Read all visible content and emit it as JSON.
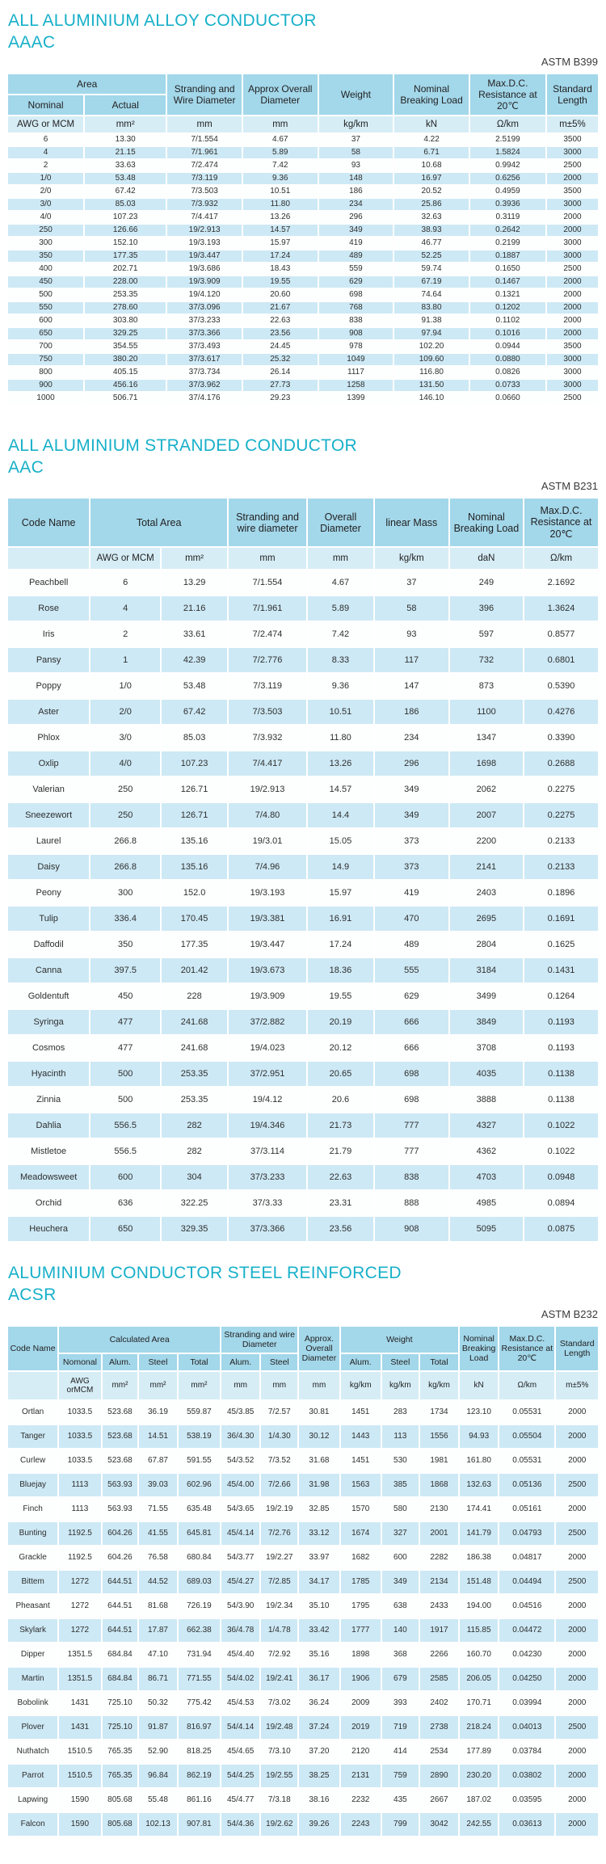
{
  "aaac": {
    "title1": "ALL ALUMINIUM ALLOY CONDUCTOR",
    "title2": "AAAC",
    "standard": "ASTM B399",
    "header": {
      "area": "Area",
      "nominal": "Nominal",
      "actual": "Actual",
      "stranding": "Stranding and Wire Diameter",
      "approx_od": "Approx Overall Diameter",
      "weight": "Weight",
      "breaking_load": "Nominal Breaking Load",
      "resistance": "Max.D.C. Resistance at 20℃",
      "std_length": "Standard Length"
    },
    "units": [
      "AWG or MCM",
      "mm²",
      "mm",
      "mm",
      "kg/km",
      "kN",
      "Ω/km",
      "m±5%"
    ],
    "rows": [
      [
        "6",
        "13.30",
        "7/1.554",
        "4.67",
        "37",
        "4.22",
        "2.5199",
        "3500"
      ],
      [
        "4",
        "21.15",
        "7/1.961",
        "5.89",
        "58",
        "6.71",
        "1.5824",
        "3000"
      ],
      [
        "2",
        "33.63",
        "7/2.474",
        "7.42",
        "93",
        "10.68",
        "0.9942",
        "2500"
      ],
      [
        "1/0",
        "53.48",
        "7/3.119",
        "9.36",
        "148",
        "16.97",
        "0.6256",
        "2000"
      ],
      [
        "2/0",
        "67.42",
        "7/3.503",
        "10.51",
        "186",
        "20.52",
        "0.4959",
        "3500"
      ],
      [
        "3/0",
        "85.03",
        "7/3.932",
        "11.80",
        "234",
        "25.86",
        "0.3936",
        "3000"
      ],
      [
        "4/0",
        "107.23",
        "7/4.417",
        "13.26",
        "296",
        "32.63",
        "0.3119",
        "2000"
      ],
      [
        "250",
        "126.66",
        "19/2.913",
        "14.57",
        "349",
        "38.93",
        "0.2642",
        "2000"
      ],
      [
        "300",
        "152.10",
        "19/3.193",
        "15.97",
        "419",
        "46.77",
        "0.2199",
        "3000"
      ],
      [
        "350",
        "177.35",
        "19/3.447",
        "17.24",
        "489",
        "52.25",
        "0.1887",
        "3000"
      ],
      [
        "400",
        "202.71",
        "19/3.686",
        "18.43",
        "559",
        "59.74",
        "0.1650",
        "2500"
      ],
      [
        "450",
        "228.00",
        "19/3.909",
        "19.55",
        "629",
        "67.19",
        "0.1467",
        "2000"
      ],
      [
        "500",
        "253.35",
        "19/4.120",
        "20.60",
        "698",
        "74.64",
        "0.1321",
        "2000"
      ],
      [
        "550",
        "278.60",
        "37/3.096",
        "21.67",
        "768",
        "83.80",
        "0.1202",
        "2000"
      ],
      [
        "600",
        "303.80",
        "37/3.233",
        "22.63",
        "838",
        "91.38",
        "0.1102",
        "2000"
      ],
      [
        "650",
        "329.25",
        "37/3.366",
        "23.56",
        "908",
        "97.94",
        "0.1016",
        "2000"
      ],
      [
        "700",
        "354.55",
        "37/3.493",
        "24.45",
        "978",
        "102.20",
        "0.0944",
        "3500"
      ],
      [
        "750",
        "380.20",
        "37/3.617",
        "25.32",
        "1049",
        "109.60",
        "0.0880",
        "3000"
      ],
      [
        "800",
        "405.15",
        "37/3.734",
        "26.14",
        "1117",
        "116.80",
        "0.0826",
        "3000"
      ],
      [
        "900",
        "456.16",
        "37/3.962",
        "27.73",
        "1258",
        "131.50",
        "0.0733",
        "3000"
      ],
      [
        "1000",
        "506.71",
        "37/4.176",
        "29.23",
        "1399",
        "146.10",
        "0.0660",
        "2500"
      ]
    ]
  },
  "aac": {
    "title1": "ALL ALUMINIUM STRANDED CONDUCTOR",
    "title2": "AAC",
    "standard": "ASTM B231",
    "header": {
      "code_name": "Code Name",
      "total_area": "Total Area",
      "stranding": "Stranding and wire diameter",
      "overall_diameter": "Overall Diameter",
      "linear_mass": "linear Mass",
      "breaking_load": "Nominal Breaking Load",
      "resistance": "Max.D.C. Resistance at 20℃"
    },
    "units": [
      "",
      "AWG or MCM",
      "mm²",
      "mm",
      "mm",
      "kg/km",
      "daN",
      "Ω/km"
    ],
    "rows": [
      [
        "Peachbell",
        "6",
        "13.29",
        "7/1.554",
        "4.67",
        "37",
        "249",
        "2.1692"
      ],
      [
        "Rose",
        "4",
        "21.16",
        "7/1.961",
        "5.89",
        "58",
        "396",
        "1.3624"
      ],
      [
        "Iris",
        "2",
        "33.61",
        "7/2.474",
        "7.42",
        "93",
        "597",
        "0.8577"
      ],
      [
        "Pansy",
        "1",
        "42.39",
        "7/2.776",
        "8.33",
        "117",
        "732",
        "0.6801"
      ],
      [
        "Poppy",
        "1/0",
        "53.48",
        "7/3.119",
        "9.36",
        "147",
        "873",
        "0.5390"
      ],
      [
        "Aster",
        "2/0",
        "67.42",
        "7/3.503",
        "10.51",
        "186",
        "1100",
        "0.4276"
      ],
      [
        "Phlox",
        "3/0",
        "85.03",
        "7/3.932",
        "11.80",
        "234",
        "1347",
        "0.3390"
      ],
      [
        "Oxlip",
        "4/0",
        "107.23",
        "7/4.417",
        "13.26",
        "296",
        "1698",
        "0.2688"
      ],
      [
        "Valerian",
        "250",
        "126.71",
        "19/2.913",
        "14.57",
        "349",
        "2062",
        "0.2275"
      ],
      [
        "Sneezewort",
        "250",
        "126.71",
        "7/4.80",
        "14.4",
        "349",
        "2007",
        "0.2275"
      ],
      [
        "Laurel",
        "266.8",
        "135.16",
        "19/3.01",
        "15.05",
        "373",
        "2200",
        "0.2133"
      ],
      [
        "Daisy",
        "266.8",
        "135.16",
        "7/4.96",
        "14.9",
        "373",
        "2141",
        "0.2133"
      ],
      [
        "Peony",
        "300",
        "152.0",
        "19/3.193",
        "15.97",
        "419",
        "2403",
        "0.1896"
      ],
      [
        "Tulip",
        "336.4",
        "170.45",
        "19/3.381",
        "16.91",
        "470",
        "2695",
        "0.1691"
      ],
      [
        "Daffodil",
        "350",
        "177.35",
        "19/3.447",
        "17.24",
        "489",
        "2804",
        "0.1625"
      ],
      [
        "Canna",
        "397.5",
        "201.42",
        "19/3.673",
        "18.36",
        "555",
        "3184",
        "0.1431"
      ],
      [
        "Goldentuft",
        "450",
        "228",
        "19/3.909",
        "19.55",
        "629",
        "3499",
        "0.1264"
      ],
      [
        "Syringa",
        "477",
        "241.68",
        "37/2.882",
        "20.19",
        "666",
        "3849",
        "0.1193"
      ],
      [
        "Cosmos",
        "477",
        "241.68",
        "19/4.023",
        "20.12",
        "666",
        "3708",
        "0.1193"
      ],
      [
        "Hyacinth",
        "500",
        "253.35",
        "37/2.951",
        "20.65",
        "698",
        "4035",
        "0.1138"
      ],
      [
        "Zinnia",
        "500",
        "253.35",
        "19/4.12",
        "20.6",
        "698",
        "3888",
        "0.1138"
      ],
      [
        "Dahlia",
        "556.5",
        "282",
        "19/4.346",
        "21.73",
        "777",
        "4327",
        "0.1022"
      ],
      [
        "Mistletoe",
        "556.5",
        "282",
        "37/3.114",
        "21.79",
        "777",
        "4362",
        "0.1022"
      ],
      [
        "Meadowsweet",
        "600",
        "304",
        "37/3.233",
        "22.63",
        "838",
        "4703",
        "0.0948"
      ],
      [
        "Orchid",
        "636",
        "322.25",
        "37/3.33",
        "23.31",
        "888",
        "4985",
        "0.0894"
      ],
      [
        "Heuchera",
        "650",
        "329.35",
        "37/3.366",
        "23.56",
        "908",
        "5095",
        "0.0875"
      ]
    ]
  },
  "acsr": {
    "title1": "ALUMINIUM CONDUCTOR STEEL REINFORCED",
    "title2": "ACSR",
    "standard": "ASTM B232",
    "header": {
      "code_name": "Code Name",
      "calc_area": "Calculated Area",
      "stranding": "Stranding and wire Diameter",
      "approx_od": "Approx. Overall Diameter",
      "weight": "Weight",
      "breaking_load": "Nominal Breaking Load",
      "resistance": "Max.D.C. Resistance at 20℃",
      "std_length": "Standard Length",
      "sub": [
        "Nomonal",
        "Alum.",
        "Steel",
        "Total",
        "Alum.",
        "Steel",
        "Alum.",
        "Steel",
        "Total"
      ]
    },
    "units": [
      "",
      "AWG orMCM",
      "mm²",
      "mm²",
      "mm²",
      "mm",
      "mm",
      "mm",
      "kg/km",
      "kg/km",
      "kg/km",
      "kN",
      "Ω/km",
      "m±5%"
    ],
    "rows": [
      [
        "Ortlan",
        "1033.5",
        "523.68",
        "36.19",
        "559.87",
        "45/3.85",
        "7/2.57",
        "30.81",
        "1451",
        "283",
        "1734",
        "123.10",
        "0.05531",
        "2000"
      ],
      [
        "Tanger",
        "1033.5",
        "523.68",
        "14.51",
        "538.19",
        "36/4.30",
        "1/4.30",
        "30.12",
        "1443",
        "113",
        "1556",
        "94.93",
        "0.05504",
        "2000"
      ],
      [
        "Curlew",
        "1033.5",
        "523.68",
        "67.87",
        "591.55",
        "54/3.52",
        "7/3.52",
        "31.68",
        "1451",
        "530",
        "1981",
        "161.80",
        "0.05531",
        "2000"
      ],
      [
        "Bluejay",
        "1113",
        "563.93",
        "39.03",
        "602.96",
        "45/4.00",
        "7/2.66",
        "31.98",
        "1563",
        "385",
        "1868",
        "132.63",
        "0.05136",
        "2500"
      ],
      [
        "Finch",
        "1113",
        "563.93",
        "71.55",
        "635.48",
        "54/3.65",
        "19/2.19",
        "32.85",
        "1570",
        "580",
        "2130",
        "174.41",
        "0.05161",
        "2000"
      ],
      [
        "Bunting",
        "1192.5",
        "604.26",
        "41.55",
        "645.81",
        "45/4.14",
        "7/2.76",
        "33.12",
        "1674",
        "327",
        "2001",
        "141.79",
        "0.04793",
        "2500"
      ],
      [
        "Grackle",
        "1192.5",
        "604.26",
        "76.58",
        "680.84",
        "54/3.77",
        "19/2.27",
        "33.97",
        "1682",
        "600",
        "2282",
        "186.38",
        "0.04817",
        "2000"
      ],
      [
        "Bittem",
        "1272",
        "644.51",
        "44.52",
        "689.03",
        "45/4.27",
        "7/2.85",
        "34.17",
        "1785",
        "349",
        "2134",
        "151.48",
        "0.04494",
        "2500"
      ],
      [
        "Pheasant",
        "1272",
        "644.51",
        "81.68",
        "726.19",
        "54/3.90",
        "19/2.34",
        "35.10",
        "1795",
        "638",
        "2433",
        "194.00",
        "0.04516",
        "2000"
      ],
      [
        "Skylark",
        "1272",
        "644.51",
        "17.87",
        "662.38",
        "36/4.78",
        "1/4.78",
        "33.42",
        "1777",
        "140",
        "1917",
        "115.85",
        "0.04472",
        "2000"
      ],
      [
        "Dipper",
        "1351.5",
        "684.84",
        "47.10",
        "731.94",
        "45/4.40",
        "7/2.92",
        "35.16",
        "1898",
        "368",
        "2266",
        "160.70",
        "0.04230",
        "2000"
      ],
      [
        "Martin",
        "1351.5",
        "684.84",
        "86.71",
        "771.55",
        "54/4.02",
        "19/2.41",
        "36.17",
        "1906",
        "679",
        "2585",
        "206.05",
        "0.04250",
        "2000"
      ],
      [
        "Bobolink",
        "1431",
        "725.10",
        "50.32",
        "775.42",
        "45/4.53",
        "7/3.02",
        "36.24",
        "2009",
        "393",
        "2402",
        "170.71",
        "0.03994",
        "2000"
      ],
      [
        "Plover",
        "1431",
        "725.10",
        "91.87",
        "816.97",
        "54/4.14",
        "19/2.48",
        "37.24",
        "2019",
        "719",
        "2738",
        "218.24",
        "0.04013",
        "2500"
      ],
      [
        "Nuthatch",
        "1510.5",
        "765.35",
        "52.90",
        "818.25",
        "45/4.65",
        "7/3.10",
        "37.20",
        "2120",
        "414",
        "2534",
        "177.89",
        "0.03784",
        "2000"
      ],
      [
        "Parrot",
        "1510.5",
        "765.35",
        "96.84",
        "862.19",
        "54/4.25",
        "19/2.55",
        "38.25",
        "2131",
        "759",
        "2890",
        "230.20",
        "0.03802",
        "2000"
      ],
      [
        "Lapwing",
        "1590",
        "805.68",
        "55.48",
        "861.16",
        "45/4.77",
        "7/3.18",
        "38.16",
        "2232",
        "435",
        "2667",
        "187.02",
        "0.03595",
        "2000"
      ],
      [
        "Falcon",
        "1590",
        "805.68",
        "102.13",
        "907.81",
        "54/4.36",
        "19/2.62",
        "39.26",
        "2243",
        "799",
        "3042",
        "242.55",
        "0.03613",
        "2000"
      ]
    ]
  }
}
